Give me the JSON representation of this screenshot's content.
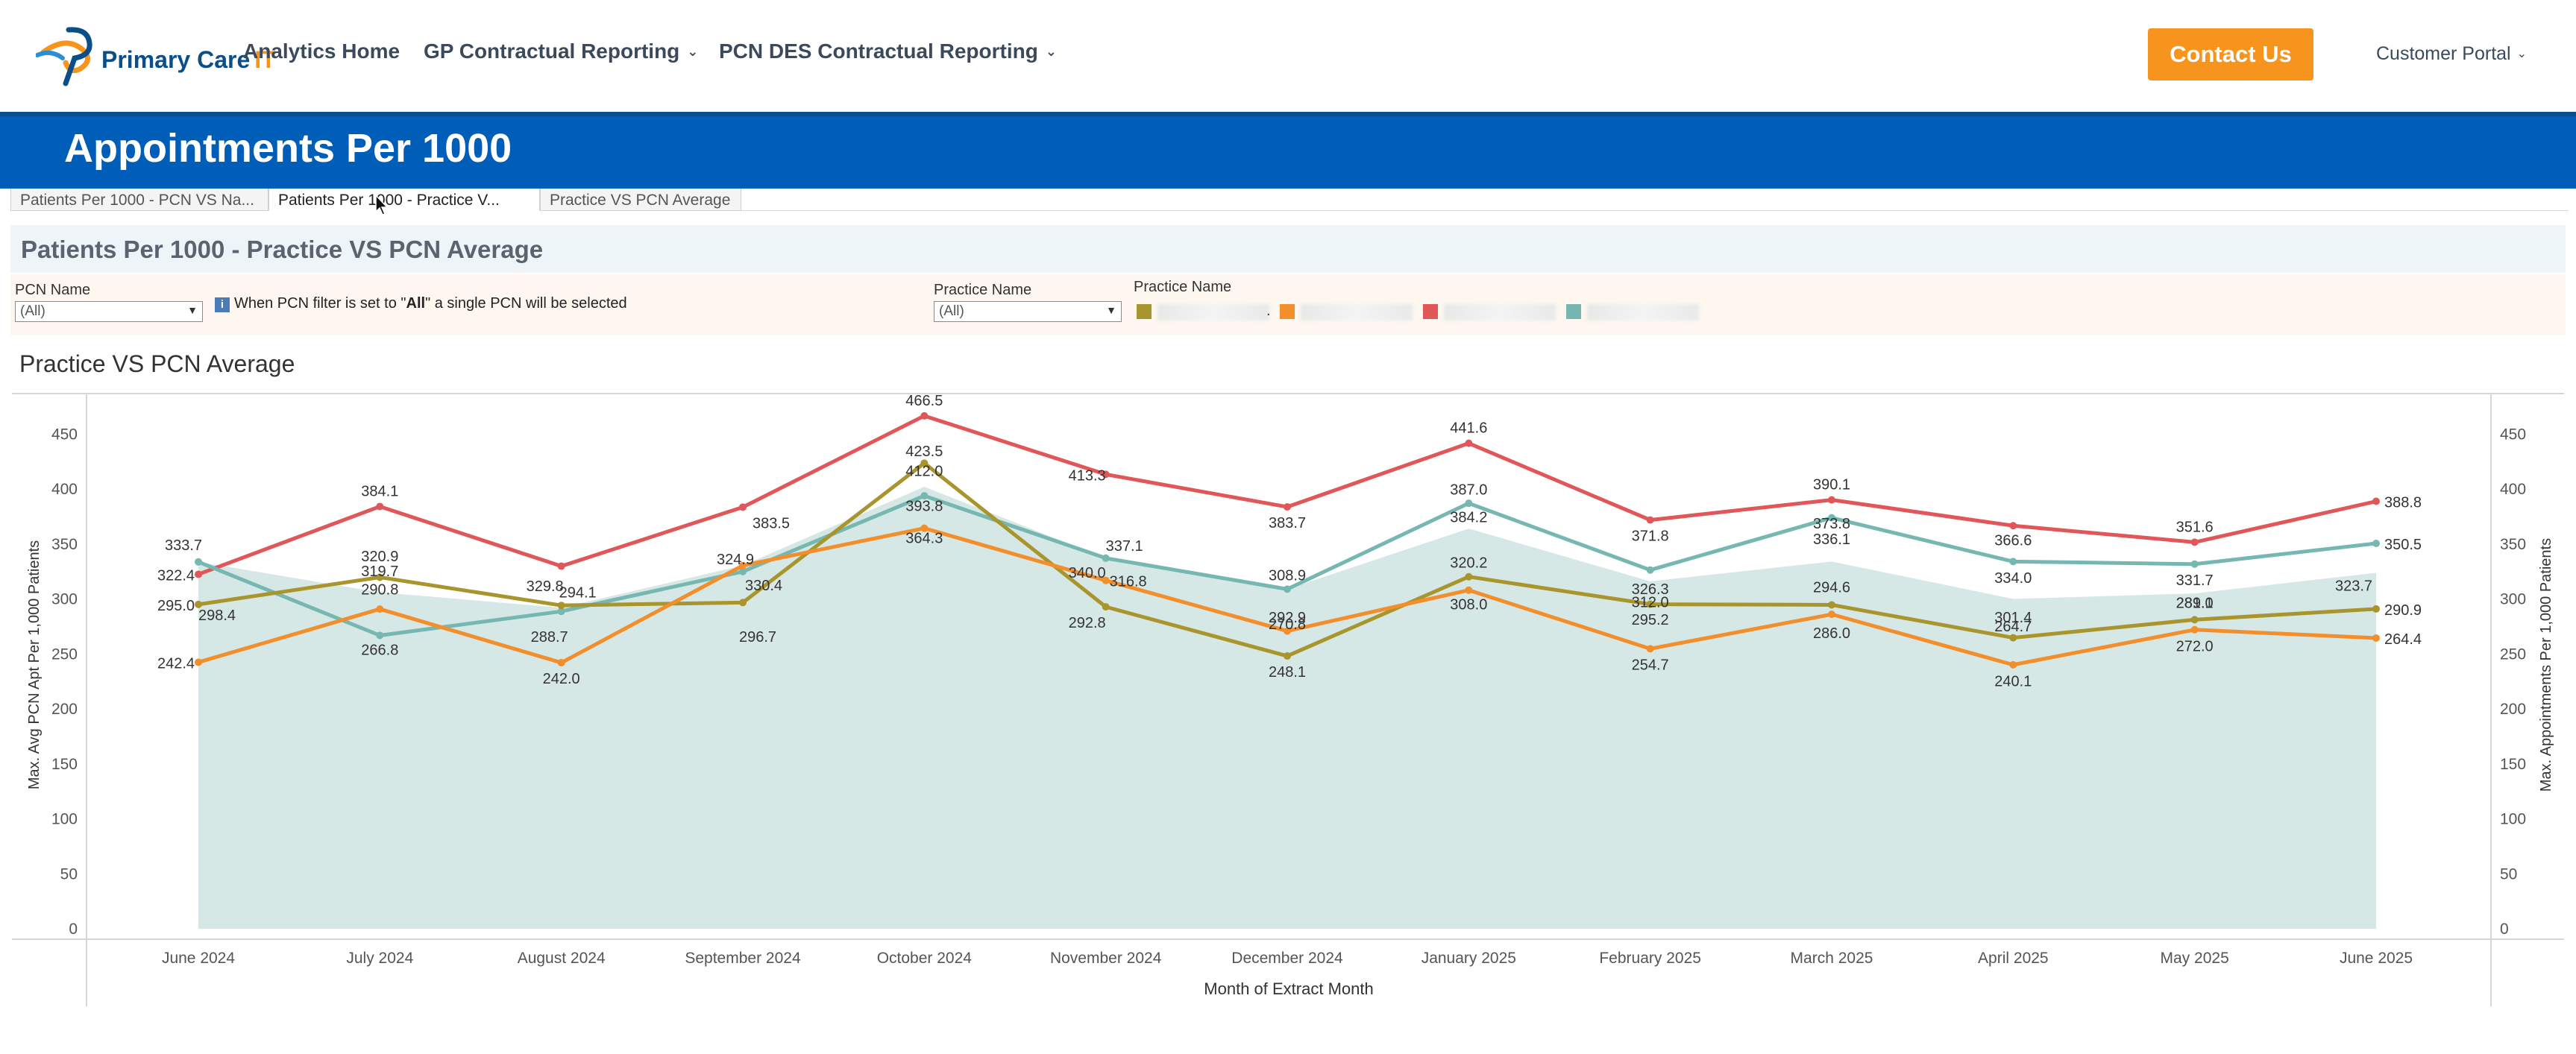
{
  "header": {
    "logo": {
      "name_a": "Primary Care",
      "name_b": "IT"
    },
    "nav": [
      {
        "label": "Analytics Home",
        "dropdown": false
      },
      {
        "label": "GP Contractual Reporting",
        "dropdown": true
      },
      {
        "label": "PCN DES Contractual Reporting",
        "dropdown": true
      }
    ],
    "contact_label": "Contact Us",
    "portal_label": "Customer Portal",
    "chevron_glyph": "⌄"
  },
  "banner": {
    "title": "Appointments Per 1000"
  },
  "tabs": [
    {
      "label": "Patients Per 1000 - PCN VS Na..."
    },
    {
      "label": "Patients Per 1000 - Practice V..."
    },
    {
      "label": "Practice VS PCN Average"
    }
  ],
  "section": {
    "title": "Patients Per 1000 - Practice VS PCN Average"
  },
  "filters": {
    "pcn": {
      "label": "PCN Name",
      "value": "(All)"
    },
    "note_prefix": "When PCN filter is set to \"",
    "note_bold": "All",
    "note_suffix": "\" a single PCN will be selected",
    "info_glyph": "i",
    "practice": {
      "label": "Practice Name",
      "value": "(All)"
    },
    "legend_title": "Practice Name",
    "legend_separator": "."
  },
  "colors": {
    "olive": "#a8952d",
    "orange": "#f28e2b",
    "red": "#e15759",
    "teal": "#76b7b2",
    "area": "#cfe4e1",
    "brand_blue": "#005eb8",
    "accent_orange": "#f7941d"
  },
  "chart_data": {
    "type": "line",
    "title": "Practice VS PCN Average",
    "xlabel": "Month of Extract Month",
    "ylabel_left": "Max. Avg PCN Apt Per 1,000 Patients",
    "ylabel_right": "Max. Appointments Per 1,000 Patients",
    "ylim": [
      0,
      480
    ],
    "yticks": [
      0,
      50,
      100,
      150,
      200,
      250,
      300,
      350,
      400,
      450
    ],
    "grid": false,
    "categories": [
      "June 2024",
      "July 2024",
      "August 2024",
      "September 2024",
      "October 2024",
      "November 2024",
      "December 2024",
      "January 2025",
      "February 2025",
      "March 2025",
      "April 2025",
      "May 2025",
      "June 2025"
    ],
    "area": {
      "values": [
        333.7,
        306.0,
        292.0,
        330.4,
        402.0,
        337.1,
        308.9,
        364.0,
        316.0,
        334.0,
        300.0,
        305.0,
        323.7
      ]
    },
    "series": [
      {
        "color_key": "red",
        "values": [
          322.4,
          384.1,
          329.8,
          383.5,
          466.5,
          413.3,
          383.7,
          441.6,
          371.8,
          390.1,
          366.6,
          351.6,
          388.8
        ]
      },
      {
        "color_key": "teal",
        "values": [
          333.7,
          266.8,
          288.7,
          324.9,
          393.8,
          337.1,
          308.9,
          387.0,
          326.3,
          373.8,
          334.0,
          331.7,
          350.5
        ]
      },
      {
        "color_key": "olive",
        "values": [
          295.0,
          319.7,
          294.1,
          296.7,
          423.5,
          292.8,
          248.1,
          320.2,
          295.2,
          294.6,
          264.7,
          281.1,
          290.9
        ]
      },
      {
        "color_key": "orange",
        "values": [
          242.4,
          290.8,
          242.0,
          330.4,
          364.3,
          316.8,
          270.8,
          308.0,
          254.7,
          286.0,
          240.1,
          272.0,
          264.4
        ]
      }
    ],
    "data_labels": [
      {
        "text": "333.7",
        "i": 0,
        "v": 333.7,
        "dx": -20,
        "dy": -16
      },
      {
        "text": "322.4",
        "i": 0,
        "v": 322.4,
        "dx": -30,
        "dy": 8
      },
      {
        "text": "295.0",
        "i": 0,
        "v": 295.0,
        "dx": -30,
        "dy": 8
      },
      {
        "text": "298.4",
        "i": 0,
        "v": 286.0,
        "dx": 25,
        "dy": 8
      },
      {
        "text": "242.4",
        "i": 0,
        "v": 242.4,
        "dx": -30,
        "dy": 8
      },
      {
        "text": "384.1",
        "i": 1,
        "v": 384.1,
        "dx": 0,
        "dy": -14
      },
      {
        "text": "320.9",
        "i": 1,
        "v": 326.0,
        "dx": 0,
        "dy": -12
      },
      {
        "text": "319.7",
        "i": 1,
        "v": 318.0,
        "dx": 0,
        "dy": -4
      },
      {
        "text": "290.8",
        "i": 1,
        "v": 296.0,
        "dx": 0,
        "dy": -12
      },
      {
        "text": "266.8",
        "i": 1,
        "v": 266.8,
        "dx": 0,
        "dy": 26
      },
      {
        "text": "329.8",
        "i": 2,
        "v": 310.0,
        "dx": -22,
        "dy": 4
      },
      {
        "text": "294.1",
        "i": 2,
        "v": 304.0,
        "dx": 22,
        "dy": 4
      },
      {
        "text": "288.7",
        "i": 2,
        "v": 280.0,
        "dx": -16,
        "dy": 28
      },
      {
        "text": "242.0",
        "i": 2,
        "v": 242.0,
        "dx": 0,
        "dy": 28
      },
      {
        "text": "383.5",
        "i": 3,
        "v": 383.5,
        "dx": 38,
        "dy": 28
      },
      {
        "text": "324.9",
        "i": 3,
        "v": 324.9,
        "dx": -10,
        "dy": -10
      },
      {
        "text": "330.4",
        "i": 3,
        "v": 312.0,
        "dx": 28,
        "dy": 6
      },
      {
        "text": "296.7",
        "i": 3,
        "v": 280.0,
        "dx": 20,
        "dy": 28
      },
      {
        "text": "466.5",
        "i": 4,
        "v": 466.5,
        "dx": 0,
        "dy": -14
      },
      {
        "text": "423.5",
        "i": 4,
        "v": 430.0,
        "dx": 0,
        "dy": 0
      },
      {
        "text": "412.0",
        "i": 4,
        "v": 412.0,
        "dx": 0,
        "dy": 0
      },
      {
        "text": "393.8",
        "i": 4,
        "v": 380.0,
        "dx": 0,
        "dy": 0
      },
      {
        "text": "364.3",
        "i": 4,
        "v": 351.0,
        "dx": 0,
        "dy": 0
      },
      {
        "text": "413.3",
        "i": 5,
        "v": 413.3,
        "dx": -25,
        "dy": 8
      },
      {
        "text": "337.1",
        "i": 5,
        "v": 337.1,
        "dx": 25,
        "dy": -10
      },
      {
        "text": "340.0",
        "i": 5,
        "v": 322.0,
        "dx": -25,
        "dy": 4
      },
      {
        "text": "316.8",
        "i": 5,
        "v": 316.8,
        "dx": 30,
        "dy": 8
      },
      {
        "text": "292.8",
        "i": 5,
        "v": 292.8,
        "dx": -25,
        "dy": 28
      },
      {
        "text": "383.7",
        "i": 6,
        "v": 383.7,
        "dx": 0,
        "dy": 28
      },
      {
        "text": "308.9",
        "i": 6,
        "v": 308.9,
        "dx": 0,
        "dy": -12
      },
      {
        "text": "292.9",
        "i": 6,
        "v": 284.0,
        "dx": 0,
        "dy": 8
      },
      {
        "text": "270.8",
        "i": 6,
        "v": 278.0,
        "dx": 0,
        "dy": 8
      },
      {
        "text": "248.1",
        "i": 6,
        "v": 248.1,
        "dx": 0,
        "dy": 28
      },
      {
        "text": "441.6",
        "i": 7,
        "v": 441.6,
        "dx": 0,
        "dy": -14
      },
      {
        "text": "387.0",
        "i": 7,
        "v": 395.0,
        "dx": 0,
        "dy": 0
      },
      {
        "text": "384.2",
        "i": 7,
        "v": 370.0,
        "dx": 0,
        "dy": 0
      },
      {
        "text": "320.2",
        "i": 7,
        "v": 320.2,
        "dx": 0,
        "dy": -12
      },
      {
        "text": "308.0",
        "i": 7,
        "v": 296.0,
        "dx": 0,
        "dy": 8
      },
      {
        "text": "371.8",
        "i": 8,
        "v": 371.8,
        "dx": 0,
        "dy": 28
      },
      {
        "text": "326.3",
        "i": 8,
        "v": 310.0,
        "dx": 0,
        "dy": 8
      },
      {
        "text": "312.0",
        "i": 8,
        "v": 298.0,
        "dx": 0,
        "dy": 8
      },
      {
        "text": "295.2",
        "i": 8,
        "v": 282.0,
        "dx": 0,
        "dy": 8
      },
      {
        "text": "254.7",
        "i": 8,
        "v": 254.7,
        "dx": 0,
        "dy": 28
      },
      {
        "text": "390.1",
        "i": 9,
        "v": 390.1,
        "dx": 0,
        "dy": -14
      },
      {
        "text": "373.8",
        "i": 9,
        "v": 364.0,
        "dx": 0,
        "dy": 0
      },
      {
        "text": "336.1",
        "i": 9,
        "v": 350.0,
        "dx": 0,
        "dy": 0
      },
      {
        "text": "294.6",
        "i": 9,
        "v": 306.0,
        "dx": 0,
        "dy": 0
      },
      {
        "text": "286.0",
        "i": 9,
        "v": 270.0,
        "dx": 0,
        "dy": 8
      },
      {
        "text": "366.6",
        "i": 10,
        "v": 366.6,
        "dx": 0,
        "dy": 26
      },
      {
        "text": "334.0",
        "i": 10,
        "v": 320.0,
        "dx": 0,
        "dy": 8
      },
      {
        "text": "301.4",
        "i": 10,
        "v": 284.0,
        "dx": 0,
        "dy": 8
      },
      {
        "text": "264.7",
        "i": 10,
        "v": 276.0,
        "dx": 0,
        "dy": 8
      },
      {
        "text": "240.1",
        "i": 10,
        "v": 226.0,
        "dx": 0,
        "dy": 8
      },
      {
        "text": "351.6",
        "i": 11,
        "v": 351.6,
        "dx": 0,
        "dy": -14
      },
      {
        "text": "331.7",
        "i": 11,
        "v": 318.0,
        "dx": 0,
        "dy": 8
      },
      {
        "text": "289.0",
        "i": 11,
        "v": 292.0,
        "dx": 0,
        "dy": 0
      },
      {
        "text": "281.1",
        "i": 11,
        "v": 292.0,
        "dx": 0,
        "dy": 0
      },
      {
        "text": "272.0",
        "i": 11,
        "v": 258.0,
        "dx": 0,
        "dy": 8
      },
      {
        "text": "388.8",
        "i": 12,
        "v": 388.8,
        "dx": 36,
        "dy": 8
      },
      {
        "text": "323.7",
        "i": 12,
        "v": 323.7,
        "dx": -30,
        "dy": 24
      },
      {
        "text": "350.5",
        "i": 12,
        "v": 350.5,
        "dx": 36,
        "dy": 8
      },
      {
        "text": "290.9",
        "i": 12,
        "v": 290.9,
        "dx": 36,
        "dy": 8
      },
      {
        "text": "264.4",
        "i": 12,
        "v": 264.4,
        "dx": 36,
        "dy": 8
      }
    ]
  }
}
